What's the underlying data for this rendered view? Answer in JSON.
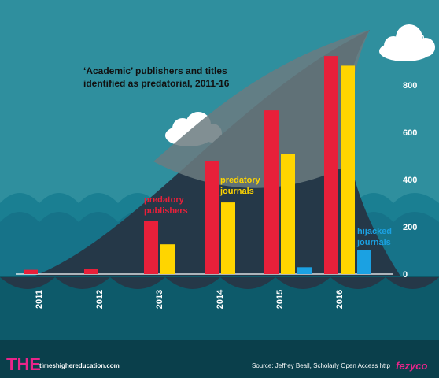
{
  "chart_data": {
    "type": "bar",
    "title": "‘Academic’ publishers and titles identified as predatorial, 2011-16",
    "categories": [
      "2011",
      "2012",
      "2013",
      "2014",
      "2015",
      "2016"
    ],
    "series": [
      {
        "name": "predatory publishers",
        "values": [
          18,
          20,
          225,
          477,
          693,
          923
        ],
        "color": "#e8203a"
      },
      {
        "name": "predatory journals",
        "values": [
          null,
          null,
          126,
          303,
          507,
          882
        ],
        "color": "#ffd500"
      },
      {
        "name": "hijacked journals",
        "values": [
          null,
          null,
          null,
          null,
          29,
          101
        ],
        "color": "#1ba1e2"
      }
    ],
    "ylim": [
      0,
      1000
    ],
    "yticks": [
      0,
      200,
      400,
      600,
      800,
      "1,000"
    ],
    "series_labels": {
      "publishers": [
        "predatory",
        "publishers"
      ],
      "journals": [
        "predatory",
        "journals"
      ],
      "hijacked": [
        "hijacked",
        "journals"
      ]
    }
  },
  "footer": {
    "logo": "THE",
    "site": "timeshighereducation.com",
    "source": "Source: Jeffrey Beall, Scholarly Open Access http",
    "watermark": "fezyco"
  }
}
